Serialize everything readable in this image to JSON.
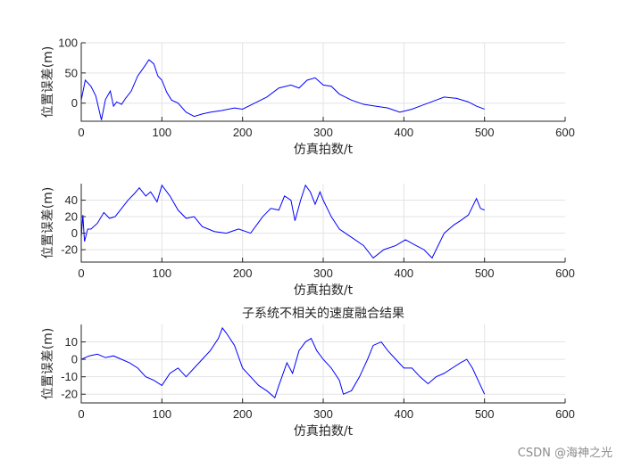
{
  "watermark": "CSDN @海神之光",
  "chart_data": [
    {
      "type": "line",
      "title": "",
      "xlabel": "仿真拍数/t",
      "ylabel": "位置误差(m)",
      "xlim": [
        0,
        600
      ],
      "ylim": [
        -30,
        100
      ],
      "xticks": [
        0,
        100,
        200,
        300,
        400,
        500,
        600
      ],
      "yticks": [
        100,
        50,
        0
      ],
      "grid": true,
      "color": "#0000ff",
      "series": [
        {
          "x": [
            0,
            5,
            12,
            18,
            25,
            30,
            36,
            40,
            44,
            50,
            55,
            62,
            70,
            78,
            84,
            90,
            95,
            100,
            106,
            112,
            120,
            130,
            140,
            150,
            160,
            175,
            190,
            200,
            215,
            230,
            245,
            260,
            270,
            280,
            290,
            300,
            310,
            320,
            335,
            350,
            365,
            380,
            395,
            410,
            420,
            430,
            440,
            450,
            465,
            480,
            490,
            500
          ],
          "y": [
            5,
            38,
            28,
            12,
            -28,
            6,
            20,
            -5,
            2,
            -2,
            8,
            20,
            45,
            60,
            72,
            65,
            45,
            38,
            18,
            5,
            0,
            -15,
            -22,
            -18,
            -15,
            -12,
            -8,
            -10,
            0,
            10,
            25,
            30,
            25,
            38,
            42,
            30,
            28,
            15,
            5,
            -2,
            -5,
            -8,
            -15,
            -10,
            -5,
            0,
            5,
            10,
            8,
            2,
            -5,
            -10
          ]
        }
      ]
    },
    {
      "type": "line",
      "title": "",
      "xlabel": "仿真拍数/t",
      "ylabel": "位置误差(m)",
      "xlim": [
        0,
        600
      ],
      "ylim": [
        -35,
        60
      ],
      "xticks": [
        0,
        100,
        200,
        300,
        400,
        500,
        600
      ],
      "yticks": [
        40,
        20,
        0,
        -20
      ],
      "grid": true,
      "color": "#0000ff",
      "series": [
        {
          "x": [
            0,
            2,
            4,
            8,
            12,
            20,
            28,
            35,
            42,
            50,
            58,
            66,
            72,
            80,
            86,
            94,
            100,
            110,
            120,
            130,
            140,
            150,
            165,
            180,
            195,
            210,
            225,
            235,
            245,
            252,
            260,
            265,
            272,
            278,
            284,
            290,
            296,
            300,
            310,
            320,
            335,
            350,
            362,
            375,
            390,
            402,
            415,
            425,
            435,
            440,
            450,
            462,
            470,
            480,
            490,
            495,
            500
          ],
          "y": [
            -5,
            22,
            -10,
            5,
            5,
            12,
            25,
            18,
            20,
            30,
            40,
            48,
            55,
            45,
            50,
            38,
            58,
            45,
            28,
            18,
            20,
            8,
            2,
            0,
            5,
            0,
            20,
            30,
            28,
            45,
            40,
            15,
            40,
            58,
            50,
            35,
            50,
            40,
            20,
            5,
            -5,
            -15,
            -30,
            -20,
            -15,
            -8,
            -15,
            -20,
            -30,
            -20,
            0,
            10,
            15,
            22,
            42,
            30,
            28
          ]
        }
      ]
    },
    {
      "type": "line",
      "title": "子系统不相关的速度融合结果",
      "xlabel": "仿真拍数/t",
      "ylabel": "位置误差(m)",
      "xlim": [
        0,
        600
      ],
      "ylim": [
        -25,
        20
      ],
      "xticks": [
        0,
        100,
        200,
        300,
        400,
        500,
        600
      ],
      "yticks": [
        10,
        0,
        -10,
        -20
      ],
      "grid": true,
      "color": "#0000ff",
      "series": [
        {
          "x": [
            0,
            10,
            20,
            30,
            40,
            50,
            60,
            70,
            80,
            90,
            100,
            110,
            120,
            130,
            140,
            150,
            160,
            170,
            175,
            180,
            190,
            200,
            210,
            220,
            230,
            240,
            245,
            255,
            262,
            270,
            278,
            285,
            292,
            300,
            310,
            320,
            325,
            335,
            345,
            355,
            362,
            372,
            380,
            390,
            400,
            410,
            420,
            430,
            440,
            450,
            460,
            470,
            478,
            485,
            490,
            500
          ],
          "y": [
            0,
            2,
            3,
            1,
            2,
            0,
            -2,
            -5,
            -10,
            -12,
            -15,
            -8,
            -5,
            -10,
            -5,
            0,
            5,
            12,
            18,
            15,
            8,
            -5,
            -10,
            -15,
            -18,
            -22,
            -15,
            -2,
            -8,
            5,
            10,
            12,
            5,
            0,
            -5,
            -12,
            -20,
            -18,
            -10,
            0,
            8,
            10,
            5,
            0,
            -5,
            -5,
            -10,
            -14,
            -10,
            -8,
            -5,
            -2,
            0,
            -5,
            -10,
            -20
          ]
        }
      ]
    }
  ]
}
